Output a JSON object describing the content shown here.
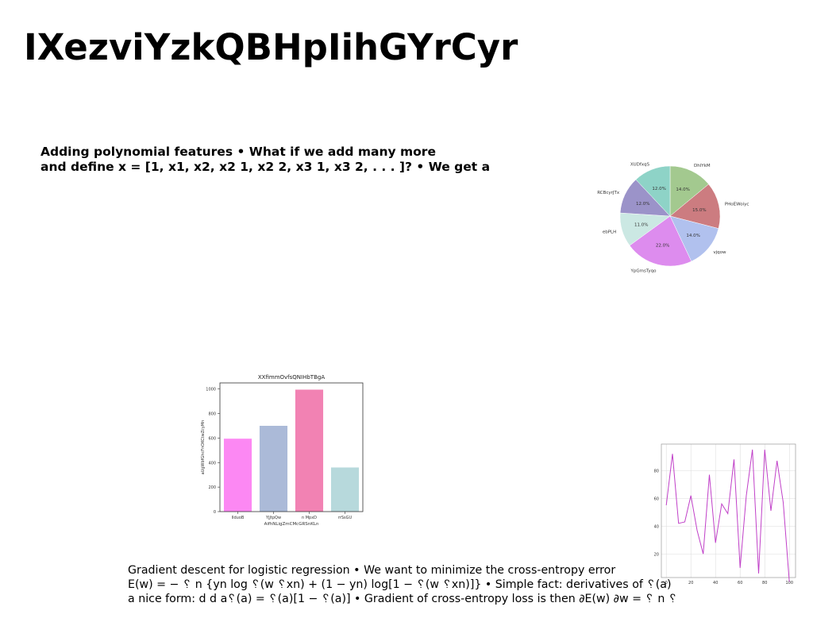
{
  "slide": {
    "title": "IXezviYzkQBHpIihGYrCyr",
    "para1": [
      "Adding polynomial features • What if we add many more",
      "and define x = [1, x1, x2, x2 1, x2 2, x3 1, x3 2, . . . ]? • We get a"
    ],
    "para2": [
      "Gradient descent for logistic regression • We want to minimize the cross-entropy error",
      "E(w) = − ␦ n {yn log ␦(w ␦xn) + (1 − yn) log[1 − ␦(w ␦xn)]} • Simple fact: derivatives of ␦(a)",
      "a nice form: d d a␦(a) = ␦(a)[1 − ␦(a)] • Gradient of cross-entropy loss is then ∂E(w) ∂w = ␦ n ␦"
    ]
  },
  "chart_data": [
    {
      "type": "pie",
      "labels": [
        "DhlYkM",
        "PHoEWoiyc",
        "vjqow",
        "YpGmsTyqo",
        "ebPLH",
        "RCBcyrJTx",
        "XUDfxqS"
      ],
      "values": [
        14.0,
        15.0,
        14.0,
        22.0,
        11.0,
        12.0,
        12.0
      ],
      "pct_labels": [
        "14.0%",
        "15.0%",
        "14.0%",
        "22.0%",
        "11.0%",
        "12.0%",
        "12.0%"
      ],
      "colors": [
        "#a3c98f",
        "#cc7c80",
        "#b1c1ee",
        "#dd8cee",
        "#cbe8e3",
        "#9b93c9",
        "#8ed3c7"
      ]
    },
    {
      "type": "bar",
      "title": "XXfimmOvfsQNIHbTBgA",
      "xlabel": "AifhNLigZmCMcGRSnKLn",
      "ylabel": "aUgWbfGhcFnOKCtwZcyMn",
      "categories": [
        "lIduoB",
        "YjJtpQw",
        "n MpxD",
        "rrSsGU"
      ],
      "values": [
        595,
        700,
        995,
        360
      ],
      "colors": [
        "#fc88f3",
        "#abbad8",
        "#f282b3",
        "#b7d9dc"
      ],
      "ylim": [
        0,
        1050
      ],
      "yticks": [
        0,
        200,
        400,
        600,
        800,
        1000
      ]
    },
    {
      "type": "line",
      "color": "#c040c8",
      "x": [
        0,
        5,
        10,
        15,
        20,
        25,
        30,
        35,
        40,
        45,
        50,
        55,
        60,
        65,
        70,
        75,
        80,
        85,
        90,
        95,
        100
      ],
      "values": [
        55,
        92,
        42,
        43,
        62,
        37,
        20,
        77,
        28,
        56,
        49,
        88,
        10,
        62,
        95,
        6,
        95,
        51,
        87,
        57,
        0
      ],
      "xlim": [
        -4,
        105
      ],
      "ylim": [
        3,
        99
      ],
      "xticks": [
        0,
        20,
        40,
        60,
        80,
        100
      ],
      "yticks": [
        20,
        40,
        60,
        80
      ],
      "grid": true
    }
  ]
}
